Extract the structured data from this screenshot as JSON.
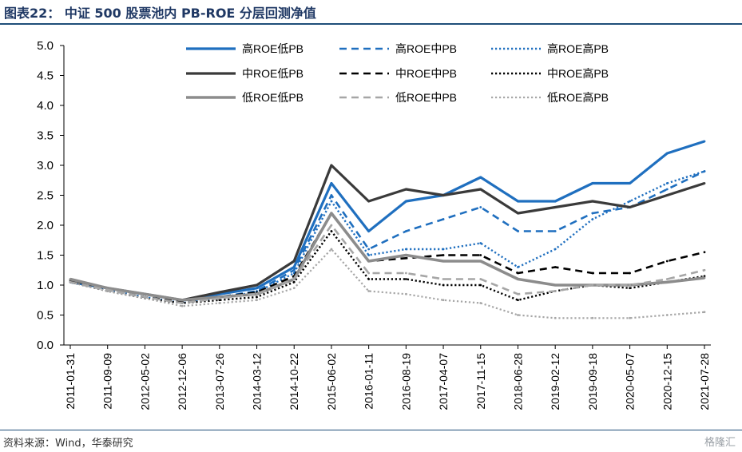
{
  "header": {
    "title": "图表22：  中证 500 股票池内 PB-ROE 分层回测净值"
  },
  "footer": {
    "source": "资料来源：Wind，华泰研究",
    "watermark": "格隆汇"
  },
  "colors": {
    "blue": "#1f6fbf",
    "dark": "#3a3a3a",
    "gray": "#8c8c8c",
    "black": "#000000",
    "lightgray": "#a6a6a6"
  },
  "chart_data": {
    "type": "line",
    "title": "中证 500 股票池内 PB-ROE 分层回测净值",
    "ylim": [
      0,
      5.0
    ],
    "yticks": [
      "0.0",
      "0.5",
      "1.0",
      "1.5",
      "2.0",
      "2.5",
      "3.0",
      "3.5",
      "4.0",
      "4.5",
      "5.0"
    ],
    "xtick_labels": [
      "2011-01-31",
      "2011-09-09",
      "2012-05-02",
      "2012-12-06",
      "2013-07-26",
      "2014-03-12",
      "2014-10-22",
      "2015-06-02",
      "2016-01-11",
      "2016-08-19",
      "2017-04-07",
      "2017-11-15",
      "2018-06-28",
      "2019-02-12",
      "2019-09-18",
      "2020-05-07",
      "2020-12-15",
      "2021-07-28"
    ],
    "x": [
      "2011-01-31",
      "2011-09-09",
      "2012-05-02",
      "2012-12-06",
      "2013-07-26",
      "2014-03-12",
      "2014-10-22",
      "2015-06-02",
      "2016-01-11",
      "2016-08-19",
      "2017-04-07",
      "2017-11-15",
      "2018-06-28",
      "2019-02-12",
      "2019-09-18",
      "2020-05-07",
      "2020-12-15",
      "2021-07-28"
    ],
    "legend_position": "top-right",
    "grid": false,
    "series": [
      {
        "name": "高ROE低PB",
        "color": "#1f6fbf",
        "style": "solid",
        "width": 3.2,
        "values": [
          1.05,
          0.95,
          0.85,
          0.75,
          0.85,
          0.95,
          1.3,
          2.7,
          1.9,
          2.4,
          2.5,
          2.8,
          2.4,
          2.4,
          2.7,
          2.7,
          3.2,
          3.4
        ]
      },
      {
        "name": "高ROE中PB",
        "color": "#1f6fbf",
        "style": "dashed",
        "width": 2.6,
        "values": [
          1.05,
          0.92,
          0.8,
          0.72,
          0.8,
          0.9,
          1.25,
          2.5,
          1.6,
          1.9,
          2.1,
          2.3,
          1.9,
          1.9,
          2.2,
          2.3,
          2.6,
          2.9
        ]
      },
      {
        "name": "高ROE高PB",
        "color": "#1f6fbf",
        "style": "dotted",
        "width": 2.4,
        "values": [
          1.05,
          0.92,
          0.8,
          0.7,
          0.8,
          0.88,
          1.2,
          2.4,
          1.5,
          1.6,
          1.6,
          1.7,
          1.3,
          1.6,
          2.1,
          2.4,
          2.7,
          2.9
        ]
      },
      {
        "name": "中ROE低PB",
        "color": "#3a3a3a",
        "style": "solid",
        "width": 3.2,
        "values": [
          1.08,
          0.95,
          0.85,
          0.75,
          0.88,
          1.0,
          1.4,
          3.0,
          2.4,
          2.6,
          2.5,
          2.6,
          2.2,
          2.3,
          2.4,
          2.3,
          2.5,
          2.7
        ]
      },
      {
        "name": "中ROE中PB",
        "color": "#000000",
        "style": "dashed",
        "width": 2.6,
        "values": [
          1.05,
          0.92,
          0.8,
          0.72,
          0.8,
          0.88,
          1.15,
          2.2,
          1.4,
          1.45,
          1.5,
          1.5,
          1.2,
          1.3,
          1.2,
          1.2,
          1.4,
          1.55
        ]
      },
      {
        "name": "中ROE高PB",
        "color": "#000000",
        "style": "dotted",
        "width": 2.4,
        "values": [
          1.05,
          0.9,
          0.78,
          0.7,
          0.75,
          0.8,
          1.05,
          1.9,
          1.1,
          1.1,
          1.0,
          1.0,
          0.75,
          0.9,
          1.0,
          0.95,
          1.05,
          1.15
        ]
      },
      {
        "name": "低ROE低PB",
        "color": "#8c8c8c",
        "style": "solid",
        "width": 3.6,
        "values": [
          1.1,
          0.95,
          0.85,
          0.75,
          0.8,
          0.85,
          1.1,
          2.2,
          1.4,
          1.5,
          1.4,
          1.4,
          1.1,
          1.0,
          1.0,
          1.0,
          1.05,
          1.12
        ]
      },
      {
        "name": "低ROE中PB",
        "color": "#a6a6a6",
        "style": "dashed",
        "width": 2.6,
        "values": [
          1.05,
          0.92,
          0.8,
          0.7,
          0.78,
          0.85,
          1.1,
          2.0,
          1.2,
          1.2,
          1.1,
          1.1,
          0.85,
          0.9,
          1.0,
          1.0,
          1.1,
          1.25
        ]
      },
      {
        "name": "低ROE高PB",
        "color": "#a6a6a6",
        "style": "dotted",
        "width": 2.2,
        "values": [
          1.05,
          0.9,
          0.78,
          0.65,
          0.7,
          0.75,
          0.95,
          1.6,
          0.9,
          0.85,
          0.75,
          0.7,
          0.5,
          0.45,
          0.45,
          0.45,
          0.5,
          0.55
        ]
      }
    ]
  }
}
